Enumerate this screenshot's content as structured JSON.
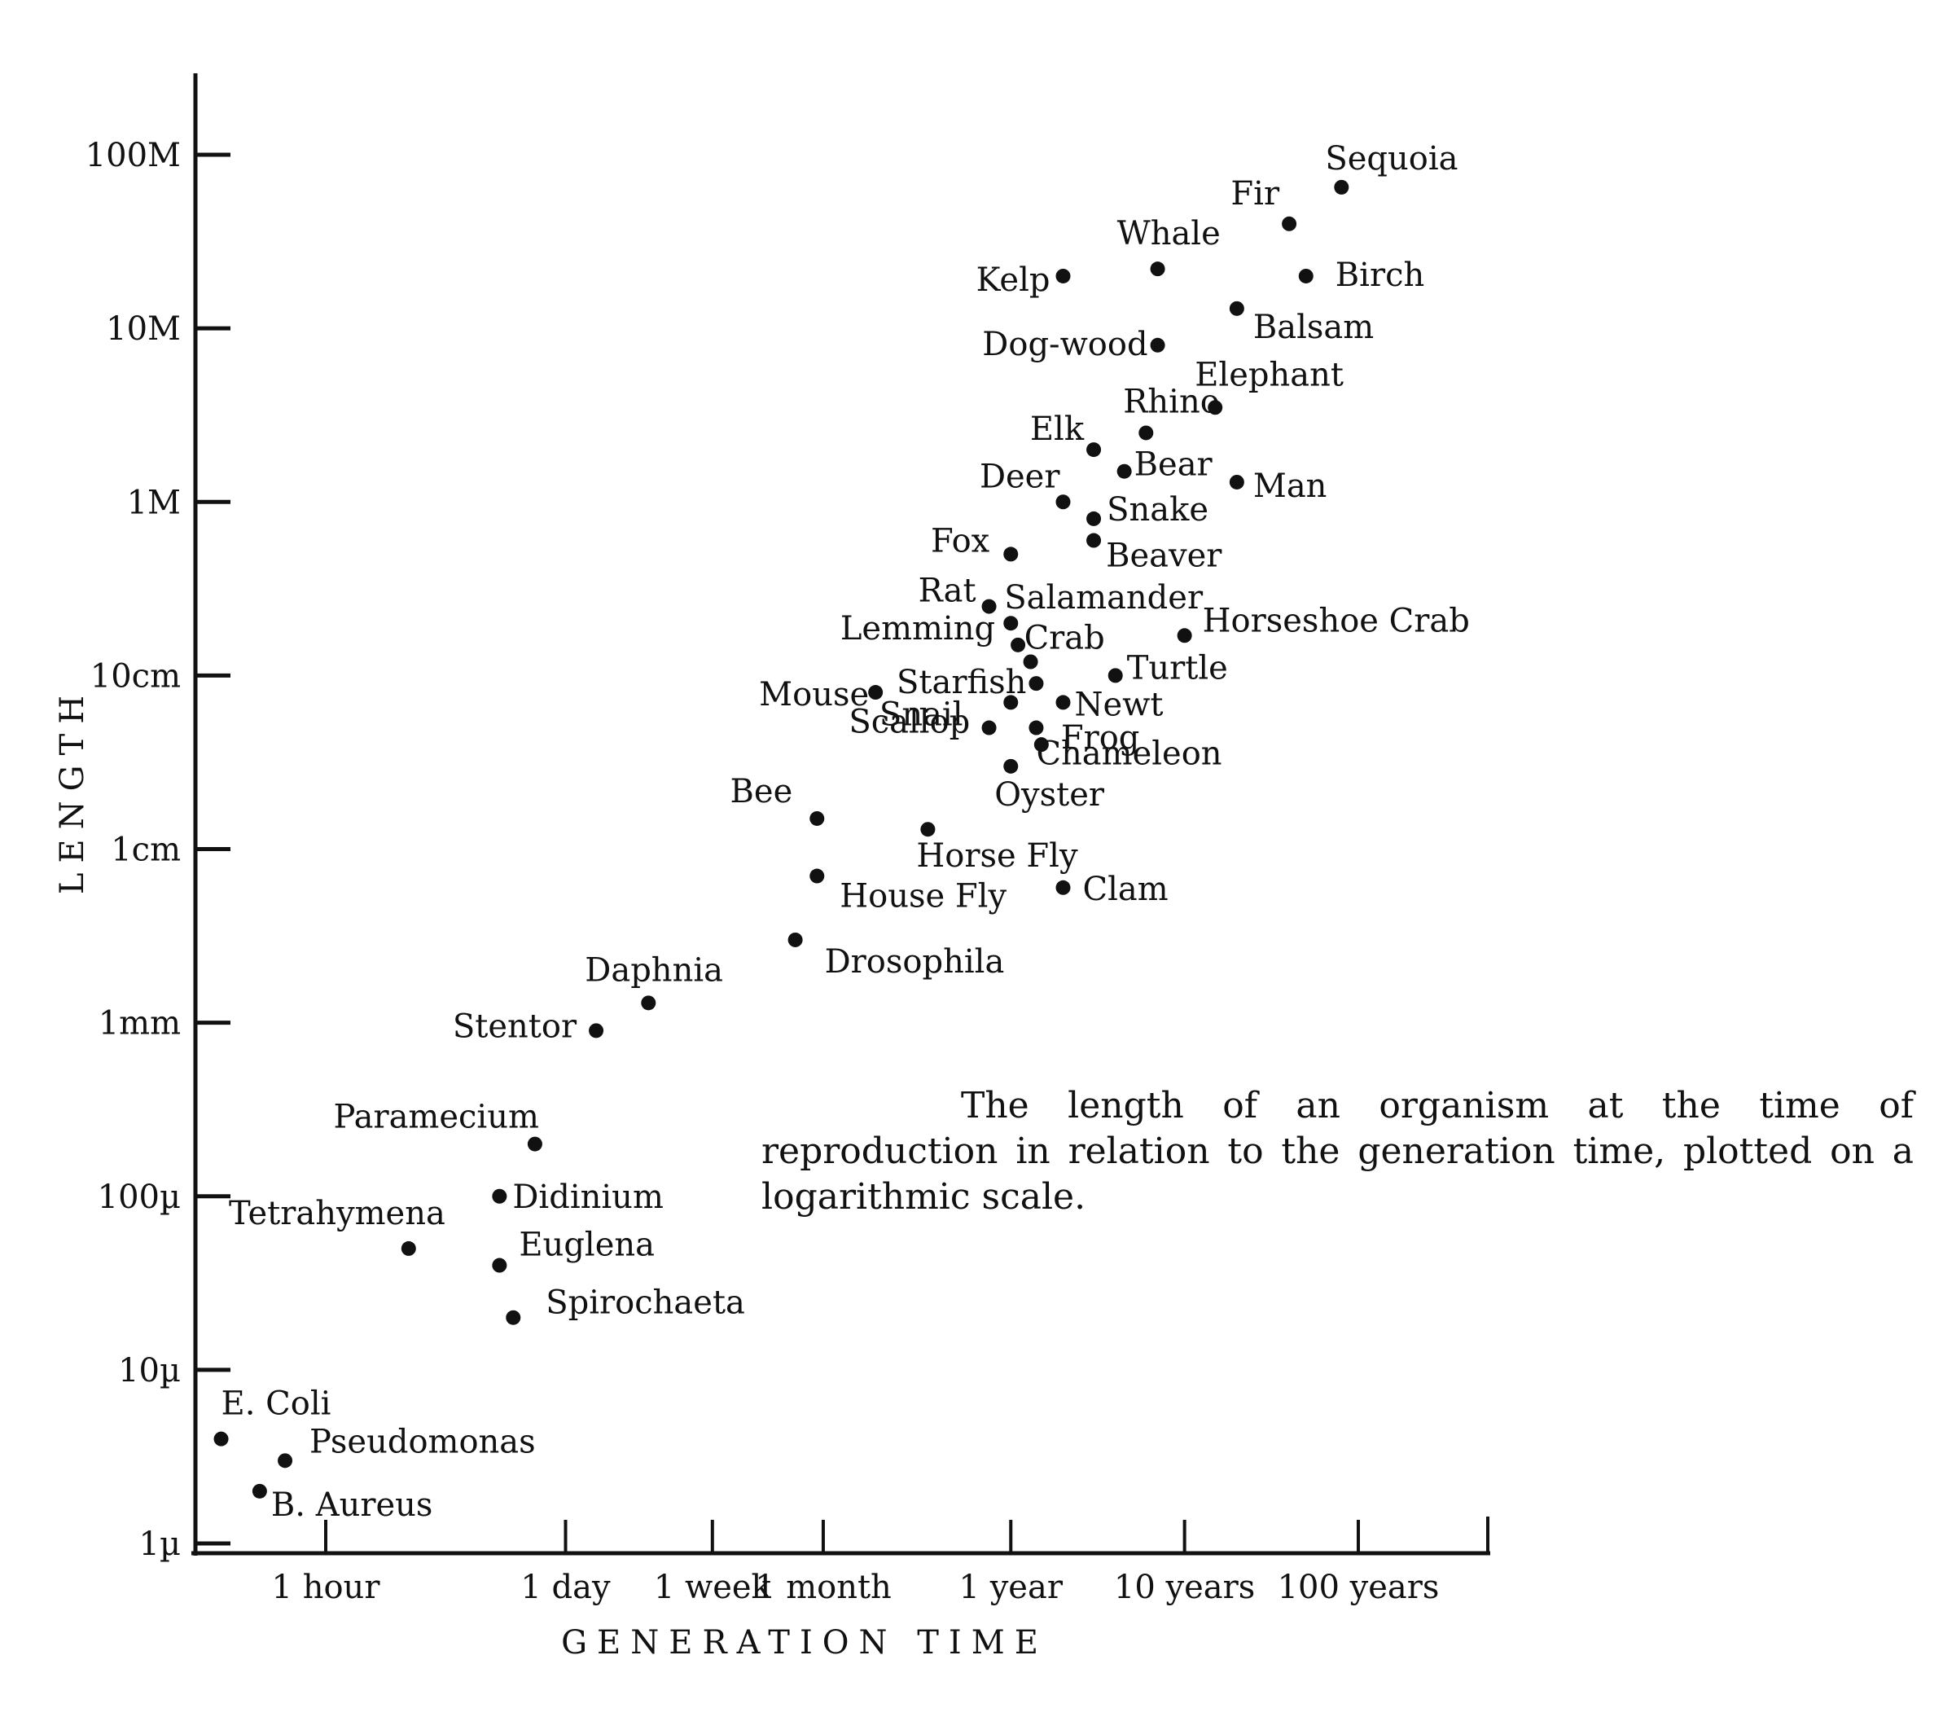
{
  "chart_data": {
    "type": "scatter",
    "title": "",
    "xlabel": "GENERATION TIME",
    "ylabel": "LENGTH",
    "x_scale": "log",
    "y_scale": "log",
    "x_ticks": [
      "1 hour",
      "1 day",
      "1 week",
      "1 month",
      "1 year",
      "10 years",
      "100 years"
    ],
    "y_ticks": [
      "1µ",
      "10µ",
      "100µ",
      "1mm",
      "1cm",
      "10cm",
      "1M",
      "10M",
      "100M"
    ],
    "grid": false,
    "legend": "none",
    "caption": "The length of an organism at the time of reproduction in relation to the generation time, plotted on a logarithmic scale.",
    "points": [
      {
        "label": "E. Coli",
        "x": "15 minutes",
        "y": "4µ"
      },
      {
        "label": "B. Aureus",
        "x": "25 minutes",
        "y": "2µ"
      },
      {
        "label": "Pseudomonas",
        "x": "35 minutes",
        "y": "3µ"
      },
      {
        "label": "Tetrahymena",
        "x": "3 hours",
        "y": "50µ"
      },
      {
        "label": "Paramecium",
        "x": "16 hours",
        "y": "200µ"
      },
      {
        "label": "Didinium",
        "x": "10 hours",
        "y": "100µ"
      },
      {
        "label": "Euglena",
        "x": "10 hours",
        "y": "40µ"
      },
      {
        "label": "Spirochaeta",
        "x": "12 hours",
        "y": "20µ"
      },
      {
        "label": "Stentor",
        "x": "1.5 days",
        "y": "0.9mm"
      },
      {
        "label": "Daphnia",
        "x": "3 days",
        "y": "1.3mm"
      },
      {
        "label": "Drosophila",
        "x": "3 weeks",
        "y": "3mm"
      },
      {
        "label": "House Fly",
        "x": "4 weeks",
        "y": "7mm"
      },
      {
        "label": "Bee",
        "x": "4 weeks",
        "y": "1.5cm"
      },
      {
        "label": "Horse Fly",
        "x": "4 months",
        "y": "1.3cm"
      },
      {
        "label": "Mouse",
        "x": "2 months",
        "y": "8cm"
      },
      {
        "label": "Rat",
        "x": "9 months",
        "y": "25cm"
      },
      {
        "label": "Lemming",
        "x": "1.1 years",
        "y": "15cm"
      },
      {
        "label": "Salamander",
        "x": "1 year",
        "y": "20cm"
      },
      {
        "label": "Crab",
        "x": "1.3 years",
        "y": "12cm"
      },
      {
        "label": "Starfish",
        "x": "1.4 years",
        "y": "9cm"
      },
      {
        "label": "Scallop",
        "x": "1 year",
        "y": "7cm"
      },
      {
        "label": "Snail",
        "x": "9 months",
        "y": "5cm"
      },
      {
        "label": "Oyster",
        "x": "1 year",
        "y": "3cm"
      },
      {
        "label": "Frog",
        "x": "1.5 years",
        "y": "4cm"
      },
      {
        "label": "Chameleon",
        "x": "1.4 years",
        "y": "5cm"
      },
      {
        "label": "Newt",
        "x": "2 years",
        "y": "7cm"
      },
      {
        "label": "Turtle",
        "x": "4 years",
        "y": "10cm"
      },
      {
        "label": "Horseshoe Crab",
        "x": "10 years",
        "y": "17cm"
      },
      {
        "label": "Clam",
        "x": "2 years",
        "y": "6mm"
      },
      {
        "label": "Fox",
        "x": "1 year",
        "y": "50cm"
      },
      {
        "label": "Beaver",
        "x": "3 years",
        "y": "60cm"
      },
      {
        "label": "Deer",
        "x": "2 years",
        "y": "1M"
      },
      {
        "label": "Snake",
        "x": "3 years",
        "y": "80cm"
      },
      {
        "label": "Elk",
        "x": "3 years",
        "y": "2M"
      },
      {
        "label": "Bear",
        "x": "4.5 years",
        "y": "1.5M"
      },
      {
        "label": "Rhino",
        "x": "6 years",
        "y": "2.5M"
      },
      {
        "label": "Man",
        "x": "20 years",
        "y": "1.3M"
      },
      {
        "label": "Elephant",
        "x": "15 years",
        "y": "3.5M"
      },
      {
        "label": "Dog-wood",
        "x": "7 years",
        "y": "8M"
      },
      {
        "label": "Kelp",
        "x": "2 years",
        "y": "20M"
      },
      {
        "label": "Whale",
        "x": "7 years",
        "y": "22M"
      },
      {
        "label": "Balsam",
        "x": "20 years",
        "y": "13M"
      },
      {
        "label": "Birch",
        "x": "50 years",
        "y": "20M"
      },
      {
        "label": "Fir",
        "x": "40 years",
        "y": "40M"
      },
      {
        "label": "Sequoia",
        "x": "80 years",
        "y": "65M"
      }
    ]
  }
}
